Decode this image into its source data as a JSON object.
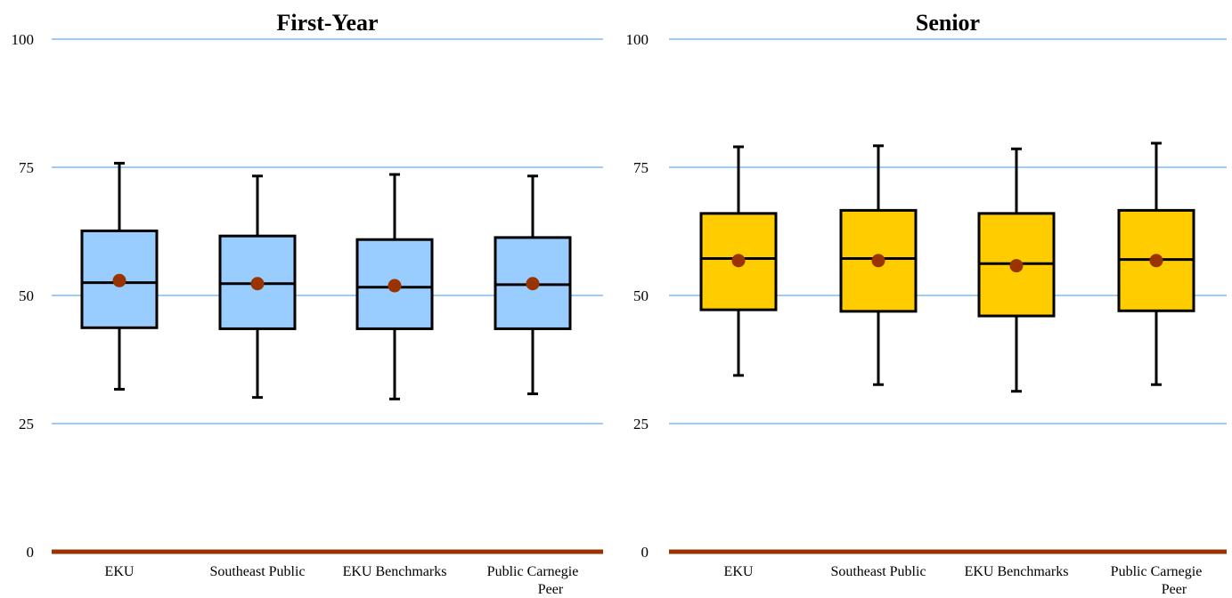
{
  "chart_data": [
    {
      "type": "box",
      "title": "First-Year",
      "categories": [
        "EKU",
        "Southeast Public",
        "EKU Benchmarks",
        "Public Carnegie Peer"
      ],
      "ylim": [
        0,
        100
      ],
      "yticks": [
        0,
        25,
        50,
        75,
        100
      ],
      "grid": true,
      "colors": {
        "box": "#99CCFF",
        "mean": "#993300",
        "grid": "#99CCFF",
        "baseline": "#993300",
        "stroke": "#000000"
      },
      "boxes": [
        {
          "whisker_low": 31.7,
          "q1": 43.7,
          "median": 52.5,
          "q3": 62.6,
          "whisker_high": 75.8,
          "mean": 52.9
        },
        {
          "whisker_low": 30.1,
          "q1": 43.5,
          "median": 52.3,
          "q3": 61.6,
          "whisker_high": 73.3,
          "mean": 52.3
        },
        {
          "whisker_low": 29.8,
          "q1": 43.5,
          "median": 51.6,
          "q3": 60.9,
          "whisker_high": 73.6,
          "mean": 51.9
        },
        {
          "whisker_low": 30.8,
          "q1": 43.5,
          "median": 52.1,
          "q3": 61.3,
          "whisker_high": 73.3,
          "mean": 52.3
        }
      ]
    },
    {
      "type": "box",
      "title": "Senior",
      "categories": [
        "EKU",
        "Southeast Public",
        "EKU Benchmarks",
        "Public Carnegie Peer"
      ],
      "ylim": [
        0,
        100
      ],
      "yticks": [
        0,
        25,
        50,
        75,
        100
      ],
      "grid": true,
      "colors": {
        "box": "#FFCC00",
        "mean": "#993300",
        "grid": "#99CCFF",
        "baseline": "#993300",
        "stroke": "#000000"
      },
      "boxes": [
        {
          "whisker_low": 34.4,
          "q1": 47.2,
          "median": 57.2,
          "q3": 66.0,
          "whisker_high": 79.0,
          "mean": 56.8
        },
        {
          "whisker_low": 32.6,
          "q1": 46.9,
          "median": 57.2,
          "q3": 66.6,
          "whisker_high": 79.2,
          "mean": 56.8
        },
        {
          "whisker_low": 31.3,
          "q1": 46.0,
          "median": 56.2,
          "q3": 66.0,
          "whisker_high": 78.6,
          "mean": 55.8
        },
        {
          "whisker_low": 32.6,
          "q1": 47.0,
          "median": 57.0,
          "q3": 66.6,
          "whisker_high": 79.7,
          "mean": 56.8
        }
      ]
    }
  ]
}
